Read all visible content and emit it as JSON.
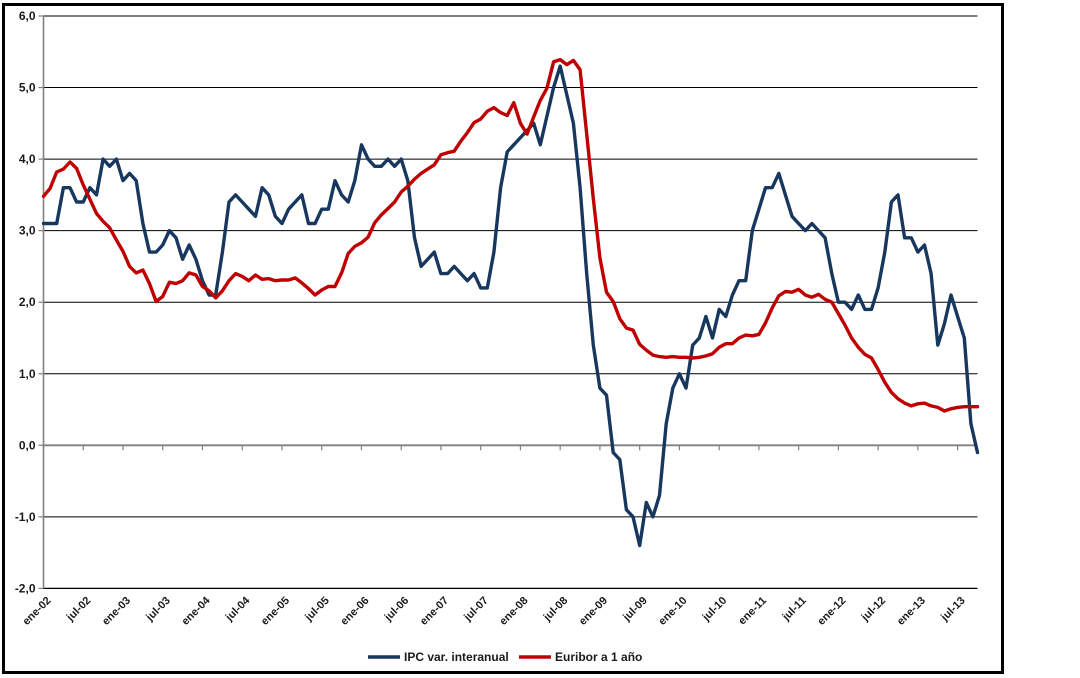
{
  "figure": {
    "background": "#FFFFFF",
    "border_color": "#000000",
    "title": ""
  },
  "chart_data": {
    "type": "line",
    "title": "",
    "xlabel": "",
    "ylabel": "",
    "x_frequency": "monthly",
    "x_start": "ene-02",
    "x_end": "oct-13",
    "ylim": [
      -2.0,
      6.0
    ],
    "y_major_step": 1.0,
    "grid": "horizontal black gridlines; gray category axis at 0 with minor ticks every 6 months",
    "legend_position": "bottom-center",
    "y_tick_labels": [
      "6,0",
      "5,0",
      "4,0",
      "3,0",
      "2,0",
      "1,0",
      "0,0",
      "-1,0",
      "-2,0"
    ],
    "x_tick_labels": [
      "ene-02",
      "jul-02",
      "ene-03",
      "jul-03",
      "ene-04",
      "jul-04",
      "ene-05",
      "jul-05",
      "ene-06",
      "jul-06",
      "ene-07",
      "jul-07",
      "ene-08",
      "jul-08",
      "ene-09",
      "jul-09",
      "ene-10",
      "jul-10",
      "ene-11",
      "jul-11",
      "ene-12",
      "jul-12",
      "ene-13",
      "jul-13"
    ],
    "series": [
      {
        "name": "IPC var. interanual",
        "color": "#17375E",
        "values": [
          3.1,
          3.1,
          3.1,
          3.6,
          3.6,
          3.4,
          3.4,
          3.6,
          3.5,
          4.0,
          3.9,
          4.0,
          3.7,
          3.8,
          3.7,
          3.1,
          2.7,
          2.7,
          2.8,
          3.0,
          2.9,
          2.6,
          2.8,
          2.6,
          2.3,
          2.1,
          2.1,
          2.7,
          3.4,
          3.5,
          3.4,
          3.3,
          3.2,
          3.6,
          3.5,
          3.2,
          3.1,
          3.3,
          3.4,
          3.5,
          3.1,
          3.1,
          3.3,
          3.3,
          3.7,
          3.5,
          3.4,
          3.7,
          4.2,
          4.0,
          3.9,
          3.9,
          4.0,
          3.9,
          4.0,
          3.7,
          2.9,
          2.5,
          2.6,
          2.7,
          2.4,
          2.4,
          2.5,
          2.4,
          2.3,
          2.4,
          2.2,
          2.2,
          2.7,
          3.6,
          4.1,
          4.2,
          4.3,
          4.4,
          4.5,
          4.2,
          4.6,
          5.0,
          5.3,
          4.9,
          4.5,
          3.6,
          2.4,
          1.4,
          0.8,
          0.7,
          -0.1,
          -0.2,
          -0.9,
          -1.0,
          -1.4,
          -0.8,
          -1.0,
          -0.7,
          0.3,
          0.8,
          1.0,
          0.8,
          1.4,
          1.5,
          1.8,
          1.5,
          1.9,
          1.8,
          2.1,
          2.3,
          2.3,
          3.0,
          3.3,
          3.6,
          3.6,
          3.8,
          3.5,
          3.2,
          3.1,
          3.0,
          3.1,
          3.0,
          2.9,
          2.4,
          2.0,
          2.0,
          1.9,
          2.1,
          1.9,
          1.9,
          2.2,
          2.7,
          3.4,
          3.5,
          2.9,
          2.9,
          2.7,
          2.8,
          2.4,
          1.4,
          1.7,
          2.1,
          1.8,
          1.5,
          0.3,
          -0.1
        ]
      },
      {
        "name": "Euribor a 1 año",
        "color": "#C00000",
        "values": [
          3.48,
          3.59,
          3.82,
          3.86,
          3.96,
          3.87,
          3.64,
          3.44,
          3.24,
          3.13,
          3.04,
          2.87,
          2.71,
          2.5,
          2.41,
          2.45,
          2.26,
          2.01,
          2.08,
          2.28,
          2.26,
          2.3,
          2.41,
          2.38,
          2.22,
          2.16,
          2.06,
          2.16,
          2.3,
          2.4,
          2.36,
          2.3,
          2.38,
          2.32,
          2.33,
          2.3,
          2.31,
          2.31,
          2.34,
          2.27,
          2.19,
          2.1,
          2.17,
          2.22,
          2.22,
          2.41,
          2.68,
          2.78,
          2.83,
          2.91,
          3.11,
          3.22,
          3.31,
          3.4,
          3.54,
          3.62,
          3.72,
          3.8,
          3.86,
          3.92,
          4.06,
          4.09,
          4.11,
          4.25,
          4.37,
          4.51,
          4.56,
          4.67,
          4.72,
          4.65,
          4.61,
          4.79,
          4.5,
          4.35,
          4.59,
          4.82,
          4.99,
          5.36,
          5.39,
          5.32,
          5.38,
          5.25,
          4.35,
          3.45,
          2.62,
          2.14,
          2.01,
          1.77,
          1.64,
          1.61,
          1.41,
          1.33,
          1.26,
          1.24,
          1.23,
          1.24,
          1.23,
          1.23,
          1.22,
          1.23,
          1.25,
          1.28,
          1.37,
          1.42,
          1.42,
          1.5,
          1.54,
          1.53,
          1.55,
          1.71,
          1.92,
          2.09,
          2.15,
          2.14,
          2.18,
          2.1,
          2.07,
          2.11,
          2.04,
          2.0,
          1.84,
          1.68,
          1.5,
          1.37,
          1.27,
          1.22,
          1.06,
          0.88,
          0.74,
          0.65,
          0.59,
          0.55,
          0.58,
          0.59,
          0.55,
          0.53,
          0.48,
          0.51,
          0.53,
          0.54,
          0.54,
          0.54
        ]
      }
    ],
    "colors": {
      "gridline": "#000000",
      "zero_axis": "#808080",
      "y_axis": "#808080",
      "axis_text": "#1a1a1a"
    }
  }
}
